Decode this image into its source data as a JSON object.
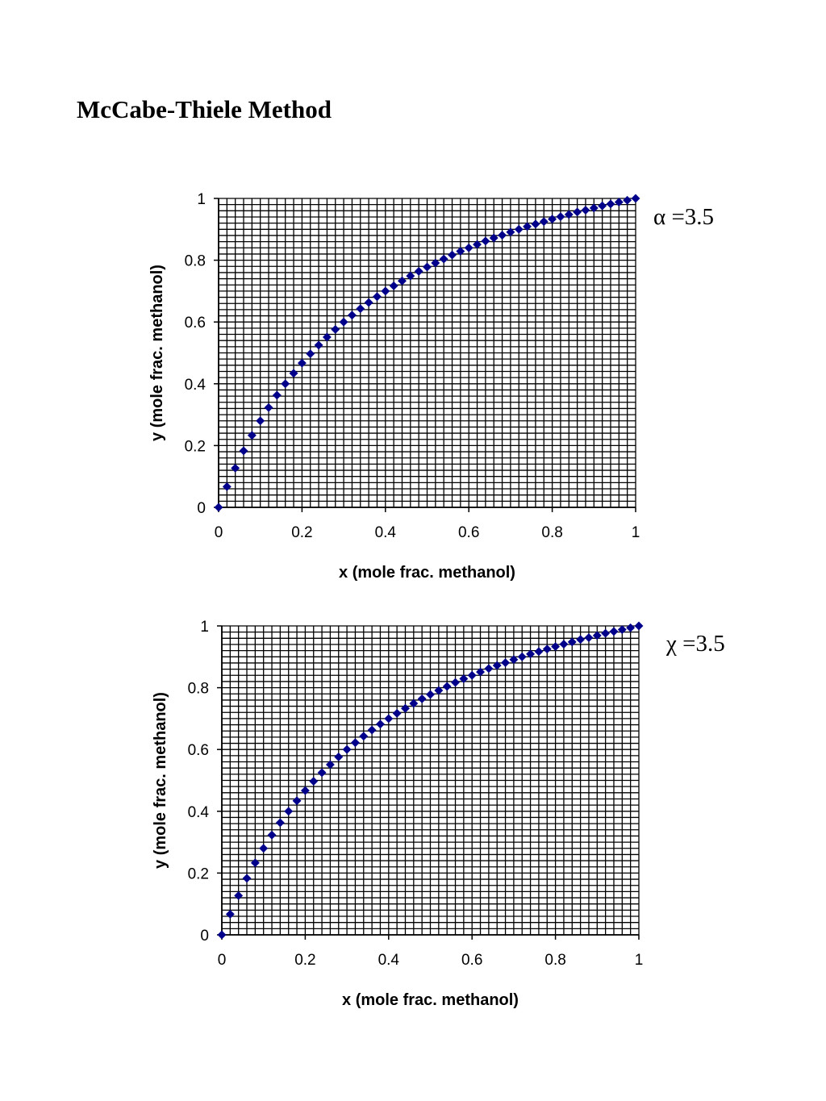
{
  "page": {
    "title": "McCabe-Thiele Method"
  },
  "colors": {
    "marker": "#00008B",
    "grid": "#000000"
  },
  "chart_data": [
    {
      "type": "scatter",
      "annotation": "α =3.5",
      "xlabel": "x (mole frac. methanol)",
      "ylabel": "y (mole frac. methanol)",
      "xlim": [
        0,
        1
      ],
      "ylim": [
        0,
        1
      ],
      "xticks": [
        "0",
        "0.2",
        "0.4",
        "0.6",
        "0.8",
        "1"
      ],
      "yticks": [
        "0",
        "0.2",
        "0.4",
        "0.6",
        "0.8",
        "1"
      ],
      "grid": true,
      "marker": "diamond",
      "x": [
        0,
        0.02,
        0.04,
        0.06,
        0.08,
        0.1,
        0.12,
        0.14,
        0.16,
        0.18,
        0.2,
        0.22,
        0.24,
        0.26,
        0.28,
        0.3,
        0.32,
        0.34,
        0.36,
        0.38,
        0.4,
        0.42,
        0.44,
        0.46,
        0.48,
        0.5,
        0.52,
        0.54,
        0.56,
        0.58,
        0.6,
        0.62,
        0.64,
        0.66,
        0.68,
        0.7,
        0.72,
        0.74,
        0.76,
        0.78,
        0.8,
        0.82,
        0.84,
        0.86,
        0.88,
        0.9,
        0.92,
        0.94,
        0.96,
        0.98,
        1.0
      ],
      "y": [
        0,
        0.067,
        0.127,
        0.183,
        0.233,
        0.28,
        0.323,
        0.363,
        0.4,
        0.434,
        0.467,
        0.497,
        0.525,
        0.551,
        0.576,
        0.6,
        0.622,
        0.643,
        0.663,
        0.682,
        0.7,
        0.717,
        0.733,
        0.749,
        0.764,
        0.778,
        0.791,
        0.804,
        0.817,
        0.829,
        0.84,
        0.851,
        0.862,
        0.872,
        0.881,
        0.891,
        0.9,
        0.909,
        0.917,
        0.925,
        0.933,
        0.941,
        0.948,
        0.956,
        0.962,
        0.969,
        0.976,
        0.982,
        0.988,
        0.994,
        1.0
      ]
    },
    {
      "type": "scatter",
      "annotation": "χ =3.5",
      "xlabel": "x (mole frac. methanol)",
      "ylabel": "y (mole frac. methanol)",
      "xlim": [
        0,
        1
      ],
      "ylim": [
        0,
        1
      ],
      "xticks": [
        "0",
        "0.2",
        "0.4",
        "0.6",
        "0.8",
        "1"
      ],
      "yticks": [
        "0",
        "0.2",
        "0.4",
        "0.6",
        "0.8",
        "1"
      ],
      "grid": true,
      "marker": "diamond",
      "x": [
        0,
        0.02,
        0.04,
        0.06,
        0.08,
        0.1,
        0.12,
        0.14,
        0.16,
        0.18,
        0.2,
        0.22,
        0.24,
        0.26,
        0.28,
        0.3,
        0.32,
        0.34,
        0.36,
        0.38,
        0.4,
        0.42,
        0.44,
        0.46,
        0.48,
        0.5,
        0.52,
        0.54,
        0.56,
        0.58,
        0.6,
        0.62,
        0.64,
        0.66,
        0.68,
        0.7,
        0.72,
        0.74,
        0.76,
        0.78,
        0.8,
        0.82,
        0.84,
        0.86,
        0.88,
        0.9,
        0.92,
        0.94,
        0.96,
        0.98,
        1.0
      ],
      "y": [
        0,
        0.067,
        0.127,
        0.183,
        0.233,
        0.28,
        0.323,
        0.363,
        0.4,
        0.434,
        0.467,
        0.497,
        0.525,
        0.551,
        0.576,
        0.6,
        0.622,
        0.643,
        0.663,
        0.682,
        0.7,
        0.717,
        0.733,
        0.749,
        0.764,
        0.778,
        0.791,
        0.804,
        0.817,
        0.829,
        0.84,
        0.851,
        0.862,
        0.872,
        0.881,
        0.891,
        0.9,
        0.909,
        0.917,
        0.925,
        0.933,
        0.941,
        0.948,
        0.956,
        0.962,
        0.969,
        0.976,
        0.982,
        0.988,
        0.994,
        1.0
      ]
    }
  ]
}
